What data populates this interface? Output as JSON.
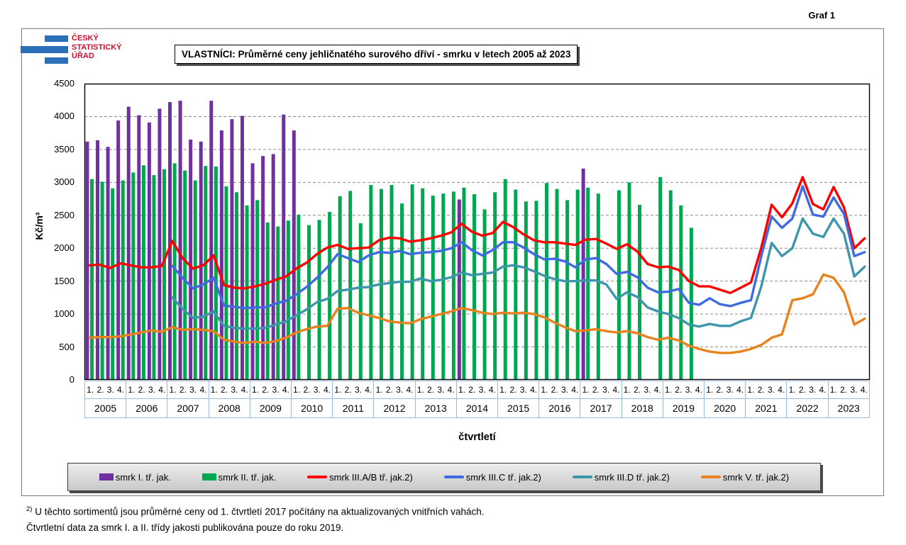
{
  "page": {
    "graf_label": "Graf 1"
  },
  "logo": {
    "line1": "ČESKÝ",
    "line2": "STATISTICKÝ",
    "line3": "ÚŘAD"
  },
  "header": {
    "title": "VLASTNÍCI: Průměrné ceny jehličnatého surového dříví - smrku v letech 2005 až 2023"
  },
  "footnotes": {
    "marker": "2)",
    "line1": " U těchto sortimentů jsou průměrné ceny od 1. čtvrtletí 2017 počítány na aktualizovaných vnitřních vahách.",
    "line2": "Čtvrtletní data za smrk I. a II. třídy jakosti publikována pouze do roku 2019."
  },
  "chart_data": {
    "type": "bar+line",
    "title": "VLASTNÍCI: Průměrné ceny jehličnatého surového dříví - smrku v letech 2005 až 2023",
    "xlabel": "čtvrtletí",
    "ylabel": "Kč/m³",
    "ylim": [
      0,
      4500
    ],
    "ytick_step": 500,
    "grid": "dashed horizontal",
    "legend_position": "bottom",
    "quarter_labels": [
      "1.",
      "2.",
      "3.",
      "4."
    ],
    "years": [
      "2005",
      "2006",
      "2007",
      "2008",
      "2009",
      "2010",
      "2011",
      "2012",
      "2013",
      "2014",
      "2015",
      "2016",
      "2017",
      "2018",
      "2019",
      "2020",
      "2021",
      "2022",
      "2023"
    ],
    "series": [
      {
        "name": "smrk I. tř. jak.",
        "type": "bar",
        "color": "#7030a0",
        "values": [
          3620,
          3640,
          3540,
          3940,
          4150,
          4020,
          3910,
          4120,
          4220,
          4240,
          3650,
          3620,
          4240,
          3790,
          3960,
          4010,
          3290,
          3400,
          3430,
          4030,
          3790,
          null,
          null,
          null,
          null,
          null,
          null,
          null,
          null,
          null,
          null,
          null,
          null,
          null,
          null,
          null,
          2740,
          null,
          null,
          null,
          null,
          null,
          null,
          null,
          null,
          null,
          null,
          null,
          3210,
          null,
          null,
          null,
          null,
          null,
          null,
          null,
          null,
          null,
          null,
          null,
          null,
          null,
          null,
          null,
          null,
          null,
          null,
          null,
          null,
          null,
          null,
          null,
          null,
          null,
          null,
          null
        ]
      },
      {
        "name": "smrk II. tř. jak.",
        "type": "bar",
        "color": "#00a650",
        "values": [
          3050,
          3010,
          2910,
          3030,
          3150,
          3260,
          3110,
          3200,
          3290,
          3180,
          3030,
          3250,
          3240,
          2940,
          2850,
          2650,
          2730,
          2390,
          2330,
          2420,
          2510,
          2350,
          2430,
          2550,
          2790,
          2870,
          2380,
          2960,
          2900,
          2960,
          2680,
          2970,
          2910,
          2800,
          2830,
          2860,
          2920,
          2820,
          2590,
          2850,
          3050,
          2890,
          2710,
          2720,
          2990,
          2900,
          2730,
          2890,
          2920,
          2830,
          null,
          2880,
          3000,
          2660,
          null,
          3080,
          2880,
          2650,
          2310,
          null,
          null,
          null,
          null,
          null,
          null,
          null,
          null,
          null,
          null,
          null,
          null,
          null,
          null,
          null,
          null,
          null
        ]
      },
      {
        "name": "smrk III.A/B tř. jak.2)",
        "type": "line",
        "color": "#fe0000",
        "values": [
          1740,
          1750,
          1700,
          1770,
          1740,
          1710,
          1710,
          1730,
          2110,
          1850,
          1690,
          1740,
          1890,
          1440,
          1400,
          1390,
          1420,
          1460,
          1520,
          1570,
          1690,
          1780,
          1910,
          2010,
          2050,
          1990,
          2000,
          2010,
          2120,
          2160,
          2150,
          2100,
          2120,
          2150,
          2190,
          2240,
          2370,
          2250,
          2190,
          2230,
          2400,
          2320,
          2210,
          2120,
          2090,
          2090,
          2070,
          2050,
          2130,
          2140,
          2070,
          1990,
          2060,
          1950,
          1760,
          1710,
          1720,
          1670,
          1500,
          1420,
          1420,
          1370,
          1320,
          1400,
          1480,
          2010,
          2660,
          2470,
          2680,
          3080,
          2670,
          2590,
          2930,
          2620,
          2000,
          2150
        ]
      },
      {
        "name": "smrk III.C tř. jak.2)",
        "type": "line",
        "color": "#3e6be0",
        "values": [
          null,
          null,
          null,
          null,
          null,
          null,
          null,
          null,
          1730,
          1550,
          1390,
          1450,
          1550,
          1130,
          1110,
          1090,
          1100,
          1100,
          1160,
          1200,
          1300,
          1410,
          1550,
          1710,
          1910,
          1850,
          1790,
          1890,
          1940,
          1930,
          1960,
          1910,
          1930,
          1940,
          1960,
          2000,
          2090,
          1970,
          1890,
          1970,
          2090,
          2090,
          2010,
          1910,
          1830,
          1840,
          1800,
          1710,
          1830,
          1850,
          1760,
          1610,
          1640,
          1560,
          1400,
          1330,
          1340,
          1380,
          1170,
          1140,
          1240,
          1150,
          1120,
          1170,
          1210,
          1880,
          2480,
          2310,
          2450,
          2940,
          2510,
          2480,
          2770,
          2520,
          1880,
          1940
        ]
      },
      {
        "name": "smrk III.D tř. jak.2)",
        "type": "line",
        "color": "#3d96aa",
        "values": [
          null,
          null,
          null,
          null,
          null,
          null,
          null,
          null,
          1250,
          1080,
          940,
          960,
          1040,
          820,
          790,
          780,
          780,
          790,
          840,
          890,
          980,
          1070,
          1180,
          1230,
          1350,
          1370,
          1400,
          1410,
          1450,
          1470,
          1490,
          1490,
          1540,
          1500,
          1520,
          1560,
          1630,
          1590,
          1610,
          1630,
          1720,
          1740,
          1710,
          1650,
          1580,
          1530,
          1500,
          1500,
          1510,
          1510,
          1450,
          1230,
          1330,
          1260,
          1100,
          1040,
          1000,
          940,
          840,
          810,
          850,
          820,
          820,
          890,
          940,
          1420,
          2080,
          1880,
          2000,
          2450,
          2220,
          2170,
          2450,
          2220,
          1570,
          1720
        ]
      },
      {
        "name": "smrk V. tř. jak.2)",
        "type": "line",
        "color": "#e8821e",
        "values": [
          640,
          650,
          650,
          660,
          690,
          720,
          750,
          730,
          800,
          760,
          770,
          760,
          740,
          610,
          580,
          560,
          580,
          560,
          590,
          640,
          720,
          770,
          810,
          820,
          1080,
          1090,
          1020,
          980,
          940,
          890,
          870,
          860,
          920,
          960,
          1000,
          1040,
          1090,
          1060,
          1020,
          1000,
          1020,
          1010,
          1020,
          1000,
          950,
          870,
          800,
          740,
          750,
          770,
          740,
          720,
          740,
          710,
          650,
          610,
          640,
          600,
          520,
          470,
          430,
          410,
          410,
          430,
          470,
          530,
          640,
          690,
          1210,
          1240,
          1300,
          1600,
          1550,
          1330,
          840,
          930
        ]
      }
    ]
  }
}
